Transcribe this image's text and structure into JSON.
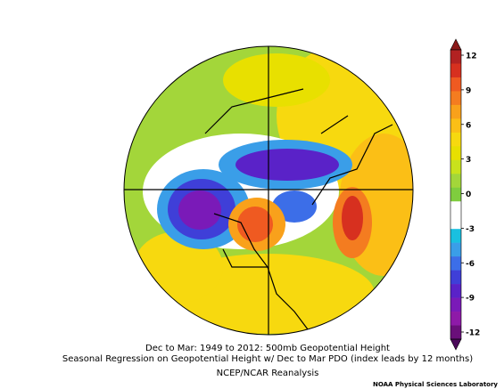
{
  "colorbar": {
    "ticks": [
      12,
      9,
      6,
      3,
      0,
      -3,
      -6,
      -9,
      -12
    ],
    "colors": [
      "#8b1a1a",
      "#b22222",
      "#d7301f",
      "#ef5a21",
      "#f47c20",
      "#f9a11b",
      "#fbbf16",
      "#f7d90f",
      "#e8e000",
      "#c9e21c",
      "#a3d63a",
      "#7fcd3e",
      "#ffffff",
      "#ffffff",
      "#19c0e0",
      "#3a9ee8",
      "#3c6ee8",
      "#3f3fd8",
      "#5a22c8",
      "#7a1ab8",
      "#8e1aa8",
      "#6a0f7a",
      "#4b0a5a"
    ]
  },
  "caption": {
    "line1": "Dec to Mar: 1949 to 2012: 500mb Geopotential Height",
    "line2": "Seasonal Regression on Geopotential Height  w/ Dec to Mar PDO (index leads by 12 months)",
    "line3": "NCEP/NCAR Reanalysis"
  },
  "credit": "NOAA Physical Sciences Laboratory"
}
